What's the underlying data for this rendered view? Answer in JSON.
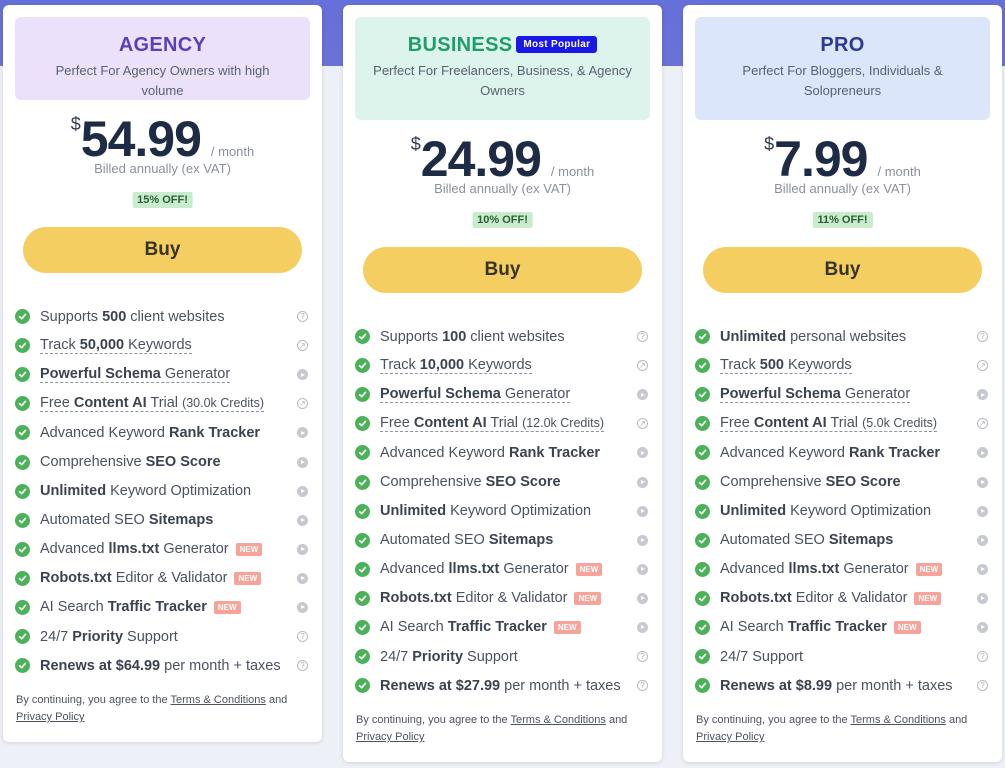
{
  "colors": {
    "agency_header_bg": "#ece1fb",
    "agency_title": "#5b3fb5",
    "business_header_bg": "#dcf4ec",
    "business_title": "#1f9e6b",
    "pro_header_bg": "#dce6fb",
    "pro_title": "#2f3a8f",
    "buy_button": "#f5ce62",
    "check": "#4cb25a",
    "new_badge": "#f6a49a",
    "popular_badge": "#1a18e6"
  },
  "plans": [
    {
      "id": "agency",
      "name": "AGENCY",
      "badge": "",
      "subtitle": "Perfect For Agency Owners with high volume",
      "currency": "$",
      "price": "54.99",
      "per": "/ month",
      "billed": "Billed annually (ex VAT)",
      "discount": "15% OFF!",
      "buy": "Buy",
      "features": {
        "sites": {
          "pre": "Supports ",
          "b": "500",
          "post": " client websites"
        },
        "keywords": {
          "pre": "Track ",
          "b": "50,000",
          "post": " Keywords"
        },
        "schema": {
          "b": "Powerful Schema",
          "post": " Generator"
        },
        "ai_trial": {
          "pre": "Free ",
          "b": "Content AI",
          "post": " Trial ",
          "credits": "(30.0k Credits)"
        },
        "rank": {
          "pre": "Advanced Keyword ",
          "b": "Rank Tracker"
        },
        "score": {
          "pre": "Comprehensive ",
          "b": "SEO Score"
        },
        "optimization": {
          "b": "Unlimited",
          "post": " Keyword Optimization"
        },
        "sitemaps": {
          "pre": "Automated SEO ",
          "b": "Sitemaps"
        },
        "llms": {
          "pre": "Advanced ",
          "b": "llms.txt",
          "post": " Generator",
          "new": "NEW"
        },
        "robots": {
          "b": "Robots.txt",
          "post": " Editor & Validator",
          "new": "NEW"
        },
        "traffic": {
          "pre": "AI Search ",
          "b": "Traffic Tracker",
          "new": "NEW"
        },
        "support": {
          "pre": "24/7 ",
          "b": "Priority",
          "post": " Support"
        },
        "renews": {
          "b": "Renews at $64.99",
          "post": " per month + taxes"
        }
      }
    },
    {
      "id": "business",
      "name": "BUSINESS",
      "badge": "Most Popular",
      "subtitle": "Perfect For Freelancers, Business, & Agency Owners",
      "currency": "$",
      "price": "24.99",
      "per": "/ month",
      "billed": "Billed annually (ex VAT)",
      "discount": "10% OFF!",
      "buy": "Buy",
      "features": {
        "sites": {
          "pre": "Supports ",
          "b": "100",
          "post": " client websites"
        },
        "keywords": {
          "pre": "Track ",
          "b": "10,000",
          "post": " Keywords"
        },
        "schema": {
          "b": "Powerful Schema",
          "post": " Generator"
        },
        "ai_trial": {
          "pre": "Free ",
          "b": "Content AI",
          "post": " Trial ",
          "credits": "(12.0k Credits)"
        },
        "rank": {
          "pre": "Advanced Keyword ",
          "b": "Rank Tracker"
        },
        "score": {
          "pre": "Comprehensive ",
          "b": "SEO Score"
        },
        "optimization": {
          "b": "Unlimited",
          "post": " Keyword Optimization"
        },
        "sitemaps": {
          "pre": "Automated SEO ",
          "b": "Sitemaps"
        },
        "llms": {
          "pre": "Advanced ",
          "b": "llms.txt",
          "post": " Generator",
          "new": "NEW"
        },
        "robots": {
          "b": "Robots.txt",
          "post": " Editor & Validator",
          "new": "NEW"
        },
        "traffic": {
          "pre": "AI Search ",
          "b": "Traffic Tracker",
          "new": "NEW"
        },
        "support": {
          "pre": "24/7 ",
          "b": "Priority",
          "post": " Support"
        },
        "renews": {
          "b": "Renews at $27.99",
          "post": " per month + taxes"
        }
      }
    },
    {
      "id": "pro",
      "name": "PRO",
      "badge": "",
      "subtitle": "Perfect For Bloggers, Individuals & Solopreneurs",
      "currency": "$",
      "price": "7.99",
      "per": "/ month",
      "billed": "Billed annually (ex VAT)",
      "discount": "11% OFF!",
      "buy": "Buy",
      "features": {
        "sites": {
          "pre": "",
          "b": "Unlimited",
          "post": " personal websites"
        },
        "keywords": {
          "pre": "Track ",
          "b": "500",
          "post": " Keywords"
        },
        "schema": {
          "b": "Powerful Schema",
          "post": " Generator"
        },
        "ai_trial": {
          "pre": "Free ",
          "b": "Content AI",
          "post": " Trial ",
          "credits": "(5.0k Credits)"
        },
        "rank": {
          "pre": "Advanced Keyword ",
          "b": "Rank Tracker"
        },
        "score": {
          "pre": "Comprehensive ",
          "b": "SEO Score"
        },
        "optimization": {
          "b": "Unlimited",
          "post": " Keyword Optimization"
        },
        "sitemaps": {
          "pre": "Automated SEO ",
          "b": "Sitemaps"
        },
        "llms": {
          "pre": "Advanced ",
          "b": "llms.txt",
          "post": " Generator",
          "new": "NEW"
        },
        "robots": {
          "b": "Robots.txt",
          "post": " Editor & Validator",
          "new": "NEW"
        },
        "traffic": {
          "pre": "AI Search ",
          "b": "Traffic Tracker",
          "new": "NEW"
        },
        "support": {
          "pre": "24/7 Support",
          "b": "",
          "post": ""
        },
        "renews": {
          "b": "Renews at $8.99",
          "post": " per month + taxes"
        }
      }
    }
  ],
  "terms": {
    "pre": "By continuing, you agree to the ",
    "terms_link": "Terms & Conditions",
    "mid": " and",
    "privacy_link": "Privacy Policy"
  }
}
